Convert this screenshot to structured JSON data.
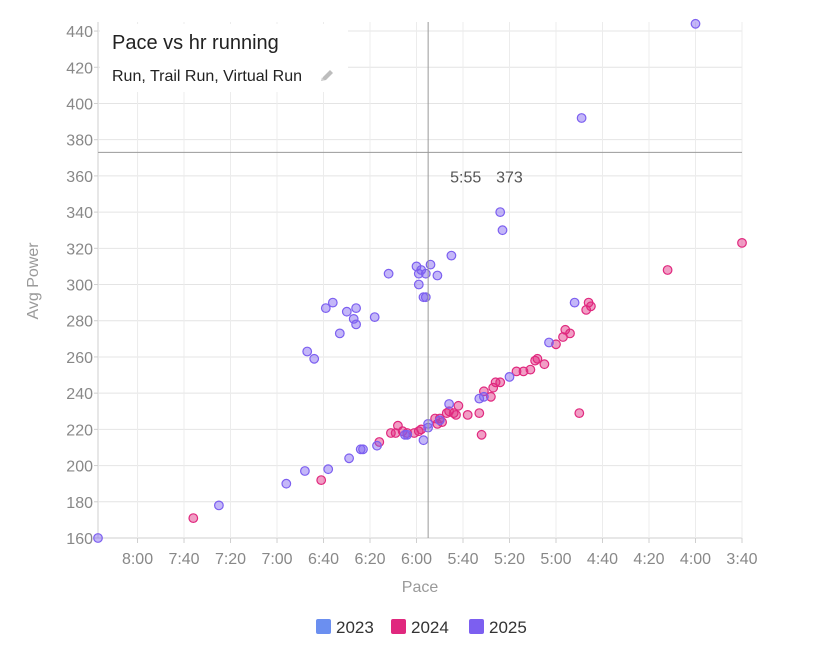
{
  "title": {
    "main": "Pace vs hr running",
    "subtitle": "Run, Trail Run, Virtual Run",
    "edit_icon": "pencil-icon"
  },
  "crosshair": {
    "x_label": "5:55",
    "y_label": "373"
  },
  "chart_data": {
    "type": "scatter",
    "title": "Pace vs hr running",
    "xlabel": "Pace",
    "ylabel": "Avg Power",
    "x_unit": "min/km (axis reversed: slower left, faster right)",
    "xlim": [
      "8:17",
      "3:40"
    ],
    "ylim": [
      160,
      445
    ],
    "x_ticks": [
      "8:00",
      "7:40",
      "7:20",
      "7:00",
      "6:40",
      "6:20",
      "6:00",
      "5:40",
      "5:20",
      "5:00",
      "4:40",
      "4:20",
      "4:00",
      "3:40"
    ],
    "y_ticks": [
      160,
      180,
      200,
      220,
      240,
      260,
      280,
      300,
      320,
      340,
      360,
      380,
      400,
      420,
      440
    ],
    "grid": true,
    "legend_position": "bottom",
    "series": [
      {
        "name": "2023",
        "color": "#6b8ff0",
        "points": []
      },
      {
        "name": "2024",
        "color": "#e0287e",
        "points": [
          [
            "7:36",
            171
          ],
          [
            "6:41",
            192
          ],
          [
            "6:16",
            213
          ],
          [
            "6:11",
            218
          ],
          [
            "6:09",
            218
          ],
          [
            "6:08",
            222
          ],
          [
            "6:06",
            219
          ],
          [
            "6:04",
            218
          ],
          [
            "6:01",
            218
          ],
          [
            "5:59",
            219
          ],
          [
            "5:58",
            220
          ],
          [
            "5:52",
            226
          ],
          [
            "5:51",
            223
          ],
          [
            "5:50",
            226
          ],
          [
            "5:49",
            224
          ],
          [
            "5:47",
            229
          ],
          [
            "5:46",
            230
          ],
          [
            "5:44",
            229
          ],
          [
            "5:43",
            228
          ],
          [
            "5:42",
            233
          ],
          [
            "5:38",
            228
          ],
          [
            "5:33",
            229
          ],
          [
            "5:32",
            217
          ],
          [
            "5:31",
            241
          ],
          [
            "5:28",
            238
          ],
          [
            "5:27",
            243
          ],
          [
            "5:26",
            246
          ],
          [
            "5:24",
            246
          ],
          [
            "5:17",
            252
          ],
          [
            "5:14",
            252
          ],
          [
            "5:11",
            253
          ],
          [
            "5:09",
            258
          ],
          [
            "5:08",
            259
          ],
          [
            "5:05",
            256
          ],
          [
            "5:00",
            267
          ],
          [
            "4:57",
            271
          ],
          [
            "4:56",
            275
          ],
          [
            "4:54",
            273
          ],
          [
            "4:50",
            229
          ],
          [
            "4:47",
            286
          ],
          [
            "4:46",
            290
          ],
          [
            "4:45",
            288
          ],
          [
            "4:12",
            308
          ],
          [
            "3:40",
            323
          ]
        ]
      },
      {
        "name": "2025",
        "color": "#7c5ff0",
        "points": [
          [
            "8:17",
            160
          ],
          [
            "7:25",
            178
          ],
          [
            "6:56",
            190
          ],
          [
            "6:48",
            197
          ],
          [
            "6:47",
            263
          ],
          [
            "6:44",
            259
          ],
          [
            "6:38",
            198
          ],
          [
            "6:39",
            287
          ],
          [
            "6:36",
            290
          ],
          [
            "6:33",
            273
          ],
          [
            "6:30",
            285
          ],
          [
            "6:29",
            204
          ],
          [
            "6:27",
            281
          ],
          [
            "6:26",
            278
          ],
          [
            "6:26",
            287
          ],
          [
            "6:24",
            209
          ],
          [
            "6:23",
            209
          ],
          [
            "6:18",
            282
          ],
          [
            "6:17",
            211
          ],
          [
            "6:12",
            306
          ],
          [
            "6:05",
            217
          ],
          [
            "6:04",
            217
          ],
          [
            "6:00",
            310
          ],
          [
            "5:59",
            306
          ],
          [
            "5:59",
            300
          ],
          [
            "5:58",
            308
          ],
          [
            "5:57",
            293
          ],
          [
            "5:57",
            214
          ],
          [
            "5:56",
            306
          ],
          [
            "5:56",
            293
          ],
          [
            "5:55",
            221
          ],
          [
            "5:55",
            223
          ],
          [
            "5:54",
            311
          ],
          [
            "5:51",
            305
          ],
          [
            "5:50",
            225
          ],
          [
            "5:46",
            234
          ],
          [
            "5:45",
            316
          ],
          [
            "5:33",
            237
          ],
          [
            "5:31",
            238
          ],
          [
            "5:20",
            249
          ],
          [
            "5:24",
            340
          ],
          [
            "5:23",
            330
          ],
          [
            "5:03",
            268
          ],
          [
            "4:52",
            290
          ],
          [
            "4:49",
            392
          ],
          [
            "4:00",
            444
          ]
        ]
      }
    ]
  },
  "legend": [
    {
      "label": "2023",
      "color": "#6b8ff0"
    },
    {
      "label": "2024",
      "color": "#e0287e"
    },
    {
      "label": "2025",
      "color": "#7c5ff0"
    }
  ]
}
